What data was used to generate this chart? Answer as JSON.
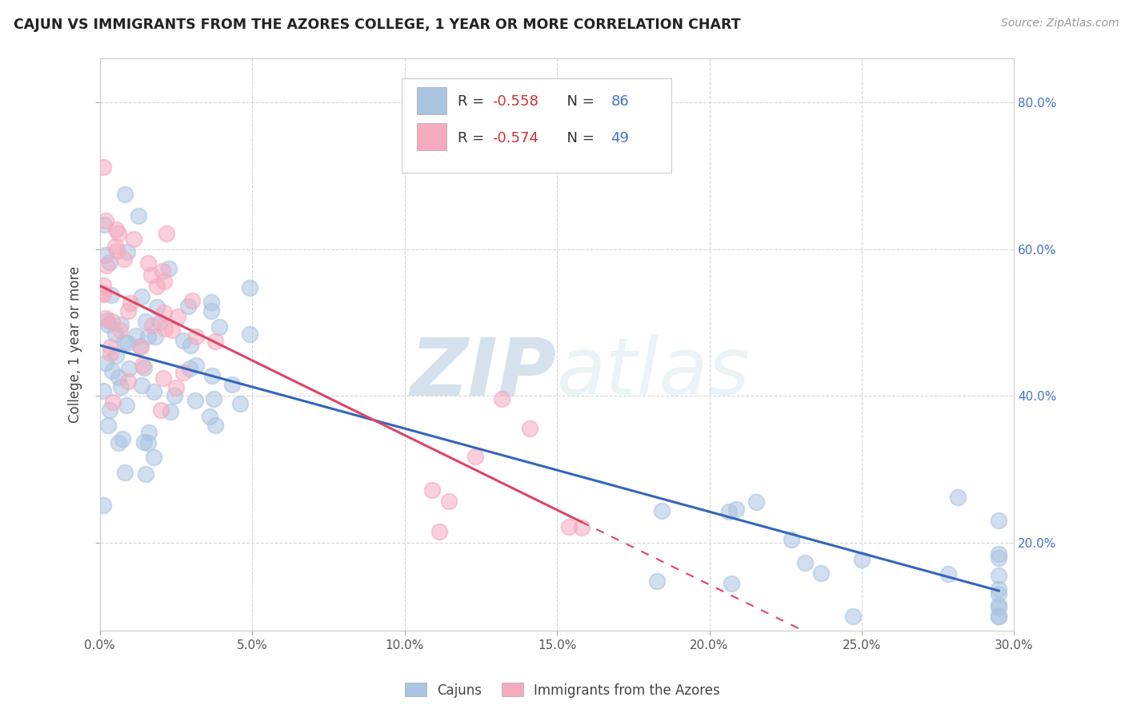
{
  "title": "CAJUN VS IMMIGRANTS FROM THE AZORES COLLEGE, 1 YEAR OR MORE CORRELATION CHART",
  "source": "Source: ZipAtlas.com",
  "ylabel": "College, 1 year or more",
  "xlim": [
    0.0,
    0.3
  ],
  "ylim": [
    0.08,
    0.86
  ],
  "xtick_vals": [
    0.0,
    0.05,
    0.1,
    0.15,
    0.2,
    0.25,
    0.3
  ],
  "xtick_labels": [
    "0.0%",
    "5.0%",
    "10.0%",
    "15.0%",
    "20.0%",
    "25.0%",
    "30.0%"
  ],
  "ytick_vals": [
    0.2,
    0.4,
    0.6,
    0.8
  ],
  "ytick_labels": [
    "20.0%",
    "40.0%",
    "60.0%",
    "80.0%"
  ],
  "cajun_color": "#aac4e2",
  "azores_color": "#f5aabe",
  "cajun_line_color": "#3366bb",
  "azores_line_color": "#dd4466",
  "background_color": "#ffffff",
  "grid_color": "#cccccc",
  "watermark_zip": "ZIP",
  "watermark_atlas": "atlas",
  "legend_label_cajun": "Cajuns",
  "legend_label_azores": "Immigrants from the Azores",
  "cajun_intercept": 0.475,
  "cajun_slope": -1.22,
  "azores_intercept": 0.535,
  "azores_slope": -2.1,
  "cajun_N": 86,
  "azores_N": 49,
  "cajun_R": "-0.558",
  "azores_R": "-0.574"
}
